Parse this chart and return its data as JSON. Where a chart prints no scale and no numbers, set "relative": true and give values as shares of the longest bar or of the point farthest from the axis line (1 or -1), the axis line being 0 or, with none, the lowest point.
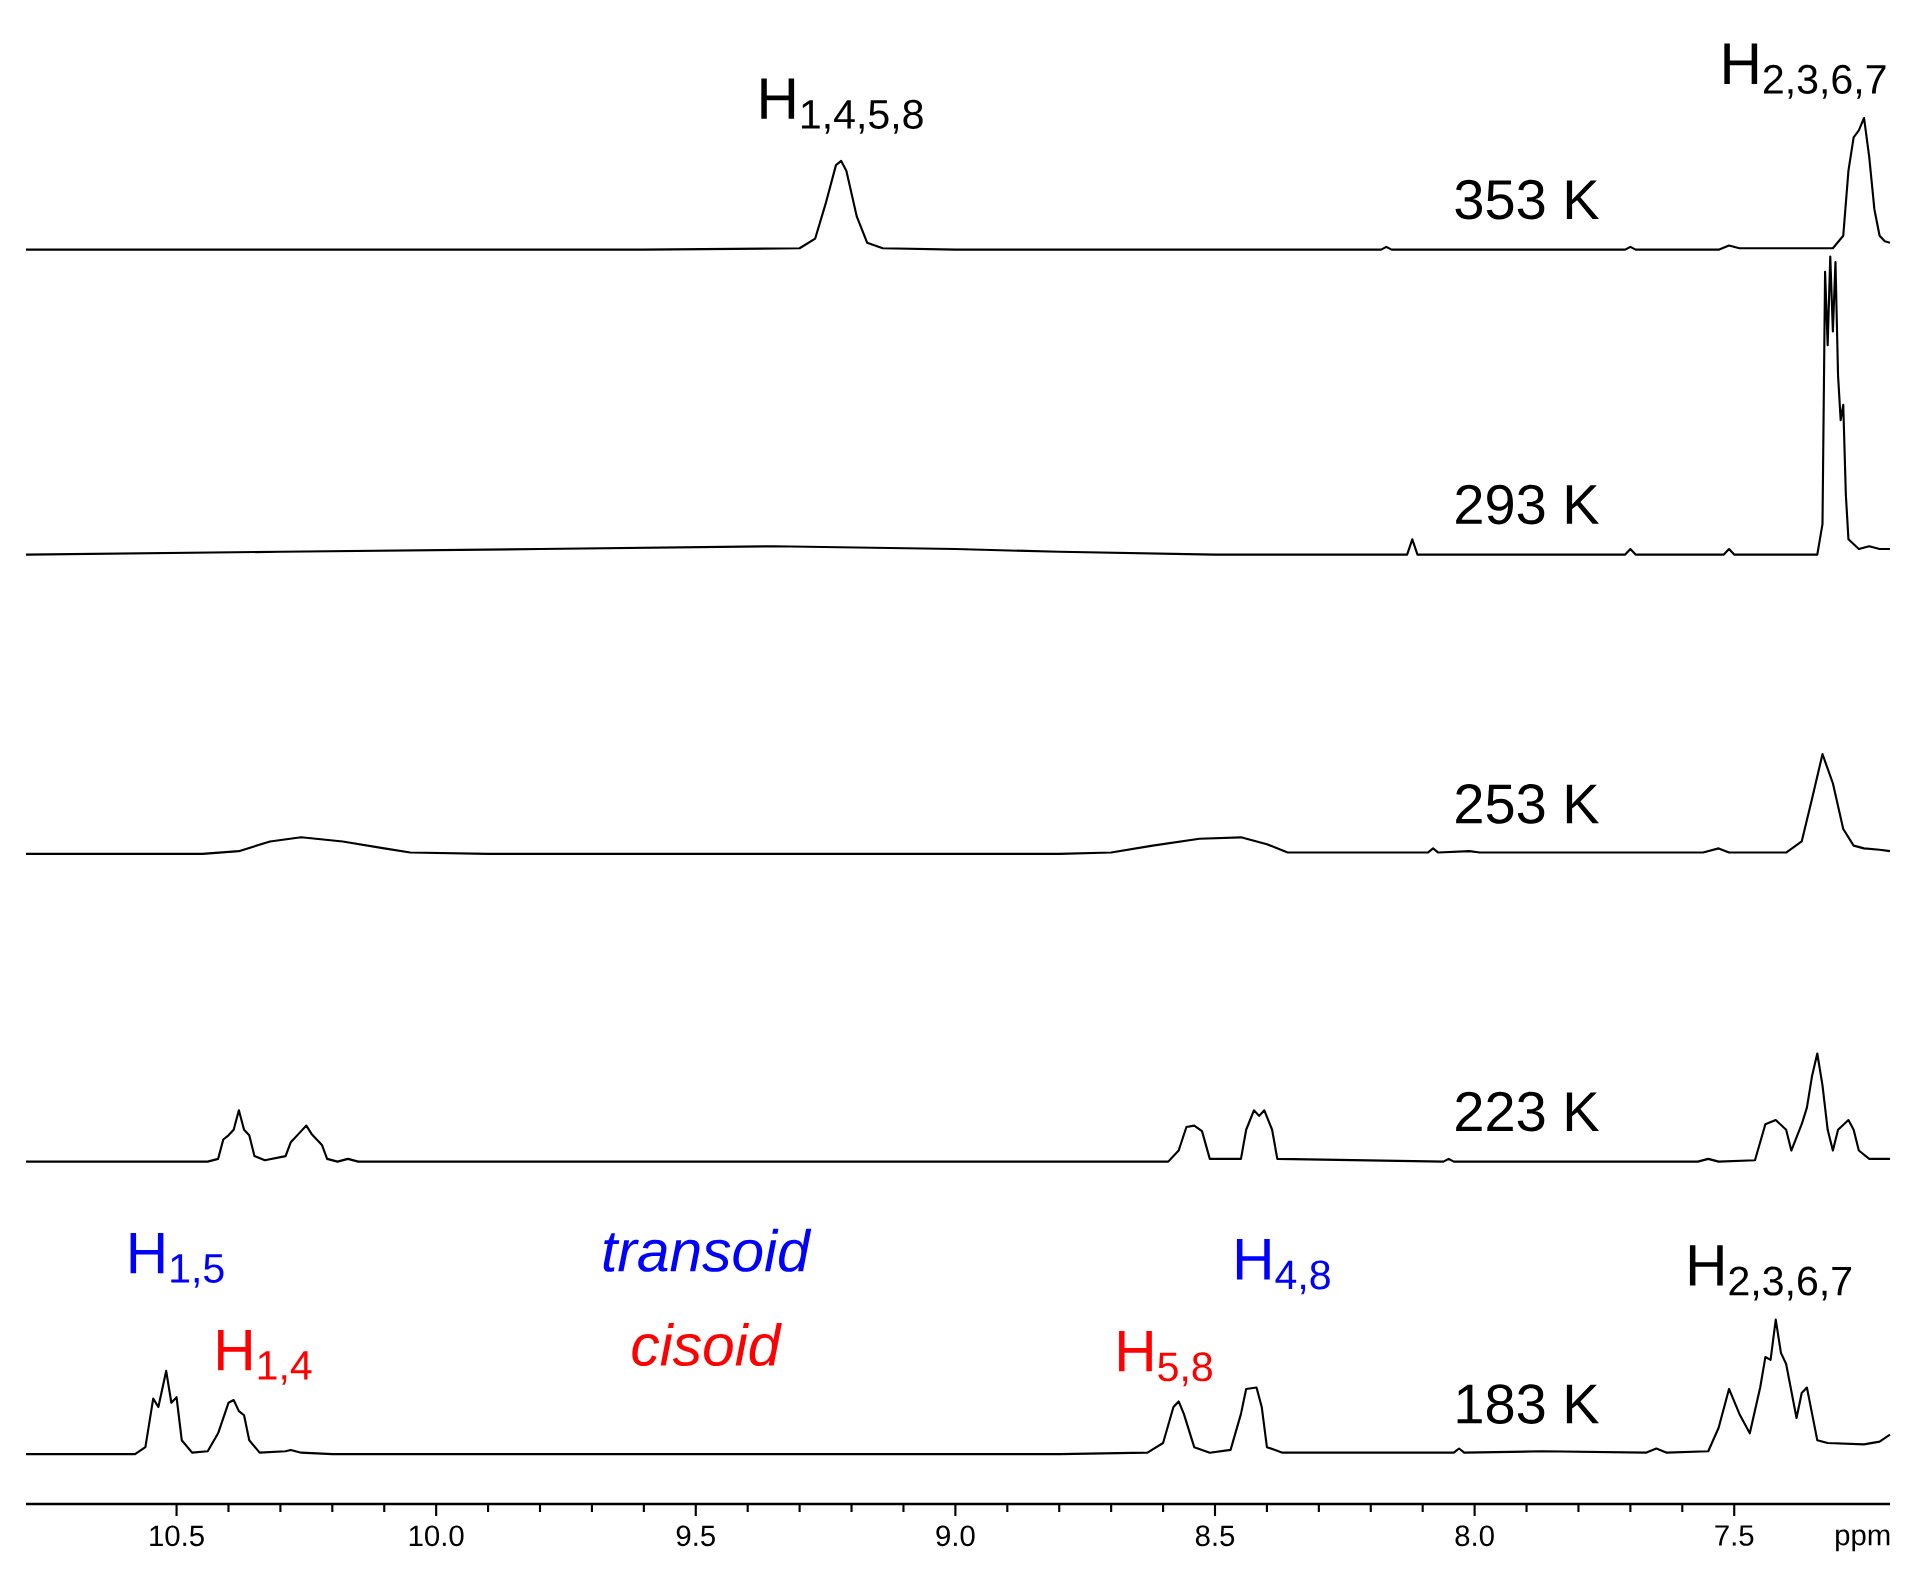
{
  "chart_data": {
    "type": "line",
    "relative": true,
    "xlim": [
      10.79,
      7.2
    ],
    "tick_labels": "x",
    "xlabel": "ppm",
    "xticks": [
      {
        "value": 10.5,
        "label": "10.5"
      },
      {
        "value": 10,
        "label": "10.0"
      },
      {
        "value": 9.5,
        "label": "9.5"
      },
      {
        "value": 9,
        "label": "9.0"
      },
      {
        "value": 8.5,
        "label": "8.5"
      },
      {
        "value": 8,
        "label": "8.0"
      },
      {
        "value": 7.5,
        "label": "7.5"
      }
    ],
    "series": [
      {
        "name": "353 K",
        "color": "#000000",
        "x": [
          10.79,
          9.6,
          9.3,
          9.27,
          9.25,
          9.23,
          9.22,
          9.21,
          9.19,
          9.17,
          9.14,
          9.0,
          8.18,
          8.17,
          8.16,
          7.71,
          7.7,
          7.69,
          7.53,
          7.51,
          7.49,
          7.31,
          7.29,
          7.28,
          7.27,
          7.26,
          7.25,
          7.24,
          7.23,
          7.22,
          7.21,
          7.2
        ],
        "values": [
          0.905,
          0.905,
          0.906,
          0.913,
          0.938,
          0.966,
          0.969,
          0.962,
          0.929,
          0.91,
          0.906,
          0.905,
          0.905,
          0.907,
          0.905,
          0.905,
          0.907,
          0.905,
          0.905,
          0.908,
          0.906,
          0.906,
          0.915,
          0.962,
          0.986,
          0.991,
          1,
          0.972,
          0.934,
          0.915,
          0.911,
          0.91
        ]
      },
      {
        "name": "293 K",
        "color": "#000000",
        "x": [
          10.79,
          10.3,
          9.8,
          9.35,
          9.0,
          8.8,
          8.5,
          8.13,
          8.12,
          8.11,
          7.71,
          7.7,
          7.69,
          7.52,
          7.51,
          7.5,
          7.34,
          7.33,
          7.325,
          7.32,
          7.315,
          7.31,
          7.305,
          7.3,
          7.295,
          7.29,
          7.285,
          7.28,
          7.26,
          7.24,
          7.22,
          7.2
        ],
        "values": [
          0.685,
          0.687,
          0.689,
          0.691,
          0.689,
          0.687,
          0.685,
          0.685,
          0.696,
          0.685,
          0.685,
          0.689,
          0.685,
          0.685,
          0.689,
          0.685,
          0.685,
          0.707,
          0.889,
          0.836,
          0.9,
          0.846,
          0.896,
          0.814,
          0.782,
          0.793,
          0.728,
          0.696,
          0.689,
          0.691,
          0.689,
          0.689
        ]
      },
      {
        "name": "253 K",
        "color": "#000000",
        "x": [
          10.79,
          10.45,
          10.38,
          10.32,
          10.26,
          10.18,
          10.1,
          10.05,
          9.9,
          8.8,
          8.7,
          8.62,
          8.53,
          8.45,
          8.4,
          8.36,
          8.3,
          8.09,
          8.08,
          8.07,
          8.01,
          7.99,
          7.56,
          7.53,
          7.51,
          7.4,
          7.37,
          7.35,
          7.33,
          7.31,
          7.29,
          7.27,
          7.25,
          7.22,
          7.2
        ],
        "values": [
          0.469,
          0.469,
          0.471,
          0.478,
          0.481,
          0.478,
          0.473,
          0.47,
          0.469,
          0.469,
          0.47,
          0.475,
          0.48,
          0.481,
          0.476,
          0.47,
          0.47,
          0.47,
          0.473,
          0.47,
          0.471,
          0.47,
          0.47,
          0.473,
          0.47,
          0.47,
          0.478,
          0.509,
          0.541,
          0.52,
          0.487,
          0.475,
          0.473,
          0.472,
          0.471
        ]
      },
      {
        "name": "223 K",
        "color": "#000000",
        "x": [
          10.79,
          10.44,
          10.42,
          10.41,
          10.4,
          10.39,
          10.38,
          10.37,
          10.36,
          10.35,
          10.33,
          10.29,
          10.28,
          10.26,
          10.25,
          10.24,
          10.22,
          10.21,
          10.19,
          10.17,
          10.15,
          8.59,
          8.57,
          8.555,
          8.54,
          8.525,
          8.51,
          8.45,
          8.44,
          8.425,
          8.415,
          8.405,
          8.39,
          8.38,
          8.06,
          8.05,
          8.04,
          7.57,
          7.55,
          7.53,
          7.46,
          7.44,
          7.42,
          7.4,
          7.39,
          7.37,
          7.36,
          7.35,
          7.34,
          7.33,
          7.32,
          7.31,
          7.3,
          7.28,
          7.27,
          7.26,
          7.24,
          7.22,
          7.2
        ],
        "values": [
          0.247,
          0.247,
          0.249,
          0.263,
          0.266,
          0.27,
          0.284,
          0.27,
          0.266,
          0.251,
          0.248,
          0.251,
          0.261,
          0.269,
          0.273,
          0.267,
          0.259,
          0.249,
          0.247,
          0.249,
          0.247,
          0.247,
          0.255,
          0.272,
          0.273,
          0.269,
          0.249,
          0.249,
          0.27,
          0.284,
          0.28,
          0.284,
          0.27,
          0.249,
          0.247,
          0.249,
          0.247,
          0.247,
          0.249,
          0.247,
          0.248,
          0.274,
          0.277,
          0.27,
          0.255,
          0.274,
          0.286,
          0.309,
          0.325,
          0.302,
          0.27,
          0.255,
          0.27,
          0.277,
          0.27,
          0.255,
          0.249,
          0.249,
          0.249
        ]
      },
      {
        "name": "183 K",
        "color": "#000000",
        "x": [
          10.79,
          10.58,
          10.56,
          10.545,
          10.535,
          10.52,
          10.51,
          10.5,
          10.49,
          10.47,
          10.44,
          10.42,
          10.4,
          10.39,
          10.38,
          10.37,
          10.36,
          10.34,
          10.29,
          10.28,
          10.26,
          10.2,
          8.8,
          8.63,
          8.6,
          8.58,
          8.57,
          8.56,
          8.54,
          8.51,
          8.47,
          8.45,
          8.44,
          8.42,
          8.41,
          8.4,
          8.37,
          8.04,
          8.03,
          8.02,
          7.87,
          7.67,
          7.65,
          7.63,
          7.55,
          7.53,
          7.51,
          7.49,
          7.47,
          7.45,
          7.44,
          7.43,
          7.42,
          7.41,
          7.4,
          7.38,
          7.37,
          7.36,
          7.35,
          7.34,
          7.32,
          7.25,
          7.22,
          7.2
        ],
        "values": [
          0.036,
          0.036,
          0.041,
          0.076,
          0.07,
          0.096,
          0.073,
          0.077,
          0.046,
          0.037,
          0.038,
          0.051,
          0.073,
          0.075,
          0.067,
          0.064,
          0.046,
          0.037,
          0.038,
          0.039,
          0.037,
          0.036,
          0.036,
          0.037,
          0.044,
          0.07,
          0.074,
          0.065,
          0.041,
          0.037,
          0.039,
          0.065,
          0.083,
          0.084,
          0.07,
          0.041,
          0.037,
          0.037,
          0.04,
          0.037,
          0.038,
          0.037,
          0.04,
          0.037,
          0.038,
          0.055,
          0.083,
          0.065,
          0.051,
          0.084,
          0.106,
          0.104,
          0.133,
          0.109,
          0.101,
          0.062,
          0.08,
          0.084,
          0.065,
          0.046,
          0.044,
          0.043,
          0.045,
          0.05
        ]
      }
    ],
    "annotations": [
      {
        "text": "H$_{1,4,5,8}$",
        "x": 9.22,
        "y": 0.969
      },
      {
        "text": "H$_{2,3,6,7}$",
        "x": 7.25,
        "y": 1
      },
      {
        "text": "H$_{1,5}$",
        "x": 10.52,
        "y": 0.096
      },
      {
        "text": "H$_{1,4}$",
        "x": 10.39,
        "y": 0.075
      },
      {
        "text": "H$_{5,8}$",
        "x": 8.57,
        "y": 0.074
      },
      {
        "text": "H$_{4,8}$",
        "x": 8.42,
        "y": 0.084
      },
      {
        "text": "H$_{2,3,6,7}$",
        "x": 7.42,
        "y": 0.133
      },
      "*transoid*",
      "*cisoid*"
    ]
  }
}
